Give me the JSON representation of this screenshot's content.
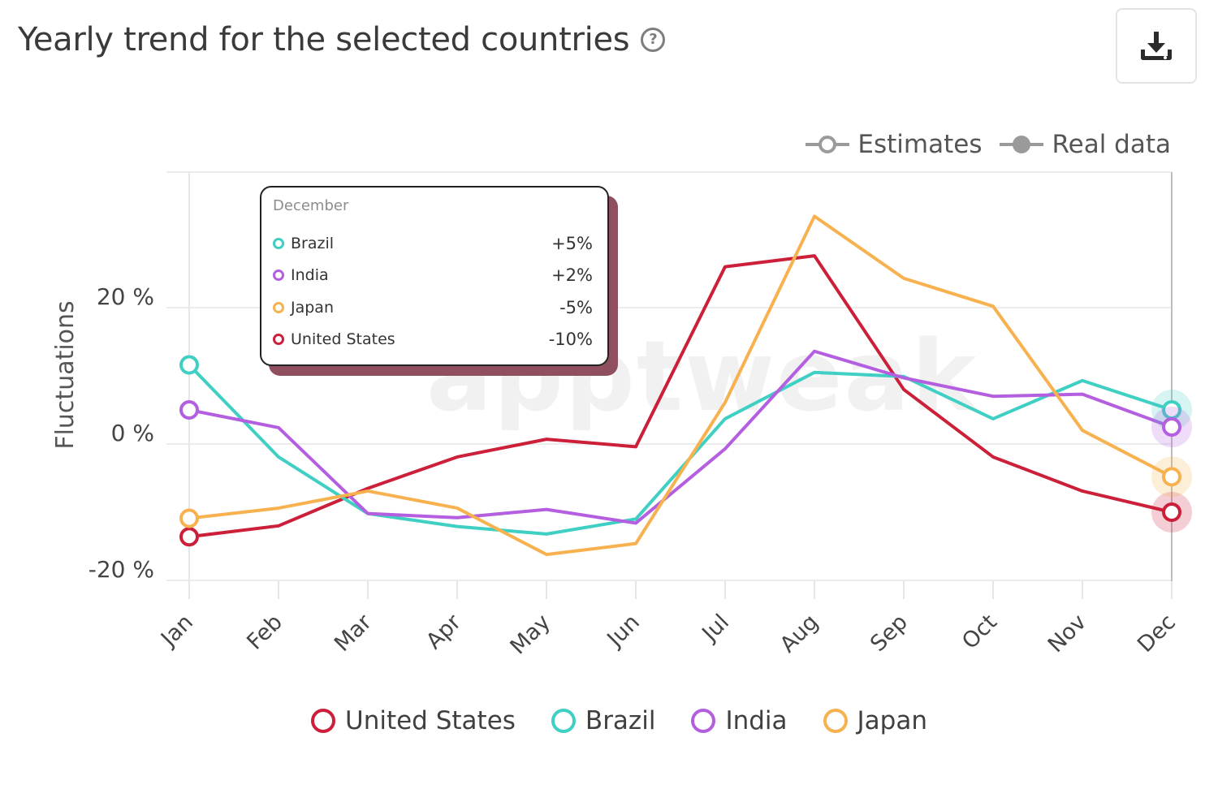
{
  "header": {
    "title": "Yearly trend for the selected countries",
    "help_icon": "question-mark-circle-icon",
    "download_icon": "download-icon"
  },
  "watermark": "apptweak",
  "data_type_legend": [
    {
      "label": "Estimates",
      "style": "hollow"
    },
    {
      "label": "Real data",
      "style": "filled"
    }
  ],
  "tooltip": {
    "heading": "December",
    "rows": [
      {
        "name": "Brazil",
        "value": "+5%",
        "color": "#3fcfc3"
      },
      {
        "name": "India",
        "value": "+2%",
        "color": "#b45ee0"
      },
      {
        "name": "Japan",
        "value": "-5%",
        "color": "#f7b24f"
      },
      {
        "name": "United States",
        "value": "-10%",
        "color": "#cc1f3a"
      }
    ]
  },
  "chart_data": {
    "type": "line",
    "ylabel": "Fluctuations",
    "xlabel": "",
    "categories": [
      "Jan",
      "Feb",
      "Mar",
      "Apr",
      "May",
      "Jun",
      "Jul",
      "Aug",
      "Sep",
      "Oct",
      "Nov",
      "Dec"
    ],
    "yticks": [
      {
        "value": 20,
        "label": "20 %"
      },
      {
        "value": 0,
        "label": "0 %"
      },
      {
        "value": -20,
        "label": "-20 %"
      }
    ],
    "ylim": [
      -20,
      40
    ],
    "grid": true,
    "highlighted_category": "Dec",
    "series": [
      {
        "name": "United States",
        "color": "#cc1f3a",
        "values": [
          -13.6,
          -12,
          -6.5,
          -1.9,
          0.7,
          -0.4,
          26,
          27.6,
          8,
          -1.9,
          -6.9,
          -10
        ]
      },
      {
        "name": "Brazil",
        "color": "#3fcfc3",
        "values": [
          11.6,
          -1.9,
          -10.2,
          -12.1,
          -13.2,
          -11,
          3.7,
          10.5,
          9.9,
          3.7,
          9.3,
          5
        ]
      },
      {
        "name": "India",
        "color": "#b45ee0",
        "values": [
          5,
          2.4,
          -10.2,
          -10.8,
          -9.6,
          -11.6,
          -0.7,
          13.6,
          9.7,
          7,
          7.3,
          2.5
        ]
      },
      {
        "name": "Japan",
        "color": "#f7b24f",
        "values": [
          -10.9,
          -9.4,
          -6.9,
          -9.4,
          -16.2,
          -14.6,
          6.1,
          33.4,
          24.3,
          20.2,
          2,
          -4.8
        ]
      }
    ]
  }
}
